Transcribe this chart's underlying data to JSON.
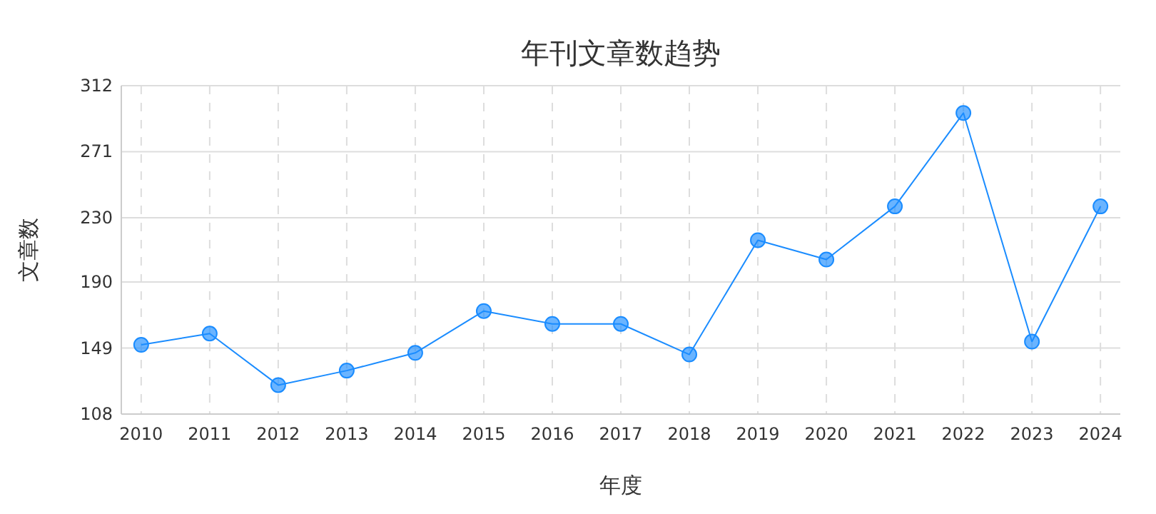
{
  "chart_data": {
    "type": "line",
    "title": "年刊文章数趋势",
    "xlabel": "年度",
    "ylabel": "文章数",
    "categories": [
      "2010",
      "2011",
      "2012",
      "2013",
      "2014",
      "2015",
      "2016",
      "2017",
      "2018",
      "2019",
      "2020",
      "2021",
      "2022",
      "2023",
      "2024"
    ],
    "series": [
      {
        "color": "#1a8cff",
        "values": [
          151,
          158,
          126,
          135,
          146,
          172,
          164,
          164,
          145,
          216,
          204,
          237,
          295,
          153,
          237
        ]
      }
    ],
    "ylim": [
      108,
      312
    ],
    "yticks": [
      108,
      149,
      190,
      230,
      271,
      312
    ],
    "grid": true,
    "marker": "circle",
    "line_style": "solid"
  }
}
